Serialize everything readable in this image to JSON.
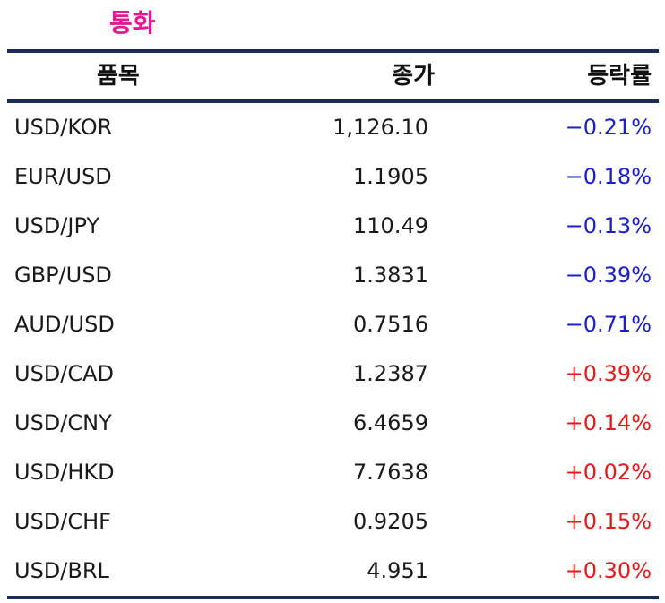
{
  "title": "통화",
  "header": {
    "item": "품목",
    "close": "종가",
    "change": "등락률"
  },
  "rows": [
    {
      "pair": "USD/KOR",
      "close": "1,126.10",
      "change": "−0.21%",
      "direction": "down"
    },
    {
      "pair": "EUR/USD",
      "close": "1.1905",
      "change": "−0.18%",
      "direction": "down"
    },
    {
      "pair": "USD/JPY",
      "close": "110.49",
      "change": "−0.13%",
      "direction": "down"
    },
    {
      "pair": "GBP/USD",
      "close": "1.3831",
      "change": "−0.39%",
      "direction": "down"
    },
    {
      "pair": "AUD/USD",
      "close": "0.7516",
      "change": "−0.71%",
      "direction": "down"
    },
    {
      "pair": "USD/CAD",
      "close": "1.2387",
      "change": "+0.39%",
      "direction": "up"
    },
    {
      "pair": "USD/CNY",
      "close": "6.4659",
      "change": "+0.14%",
      "direction": "up"
    },
    {
      "pair": "USD/HKD",
      "close": "7.7638",
      "change": "+0.02%",
      "direction": "up"
    },
    {
      "pair": "USD/CHF",
      "close": "0.9205",
      "change": "+0.15%",
      "direction": "up"
    },
    {
      "pair": "USD/BRL",
      "close": "4.951",
      "change": "+0.30%",
      "direction": "up"
    }
  ],
  "colors": {
    "title": "#e5188f",
    "rule": "#1c2b5a",
    "negative": "#1a1fc8",
    "positive": "#e11a1a"
  }
}
